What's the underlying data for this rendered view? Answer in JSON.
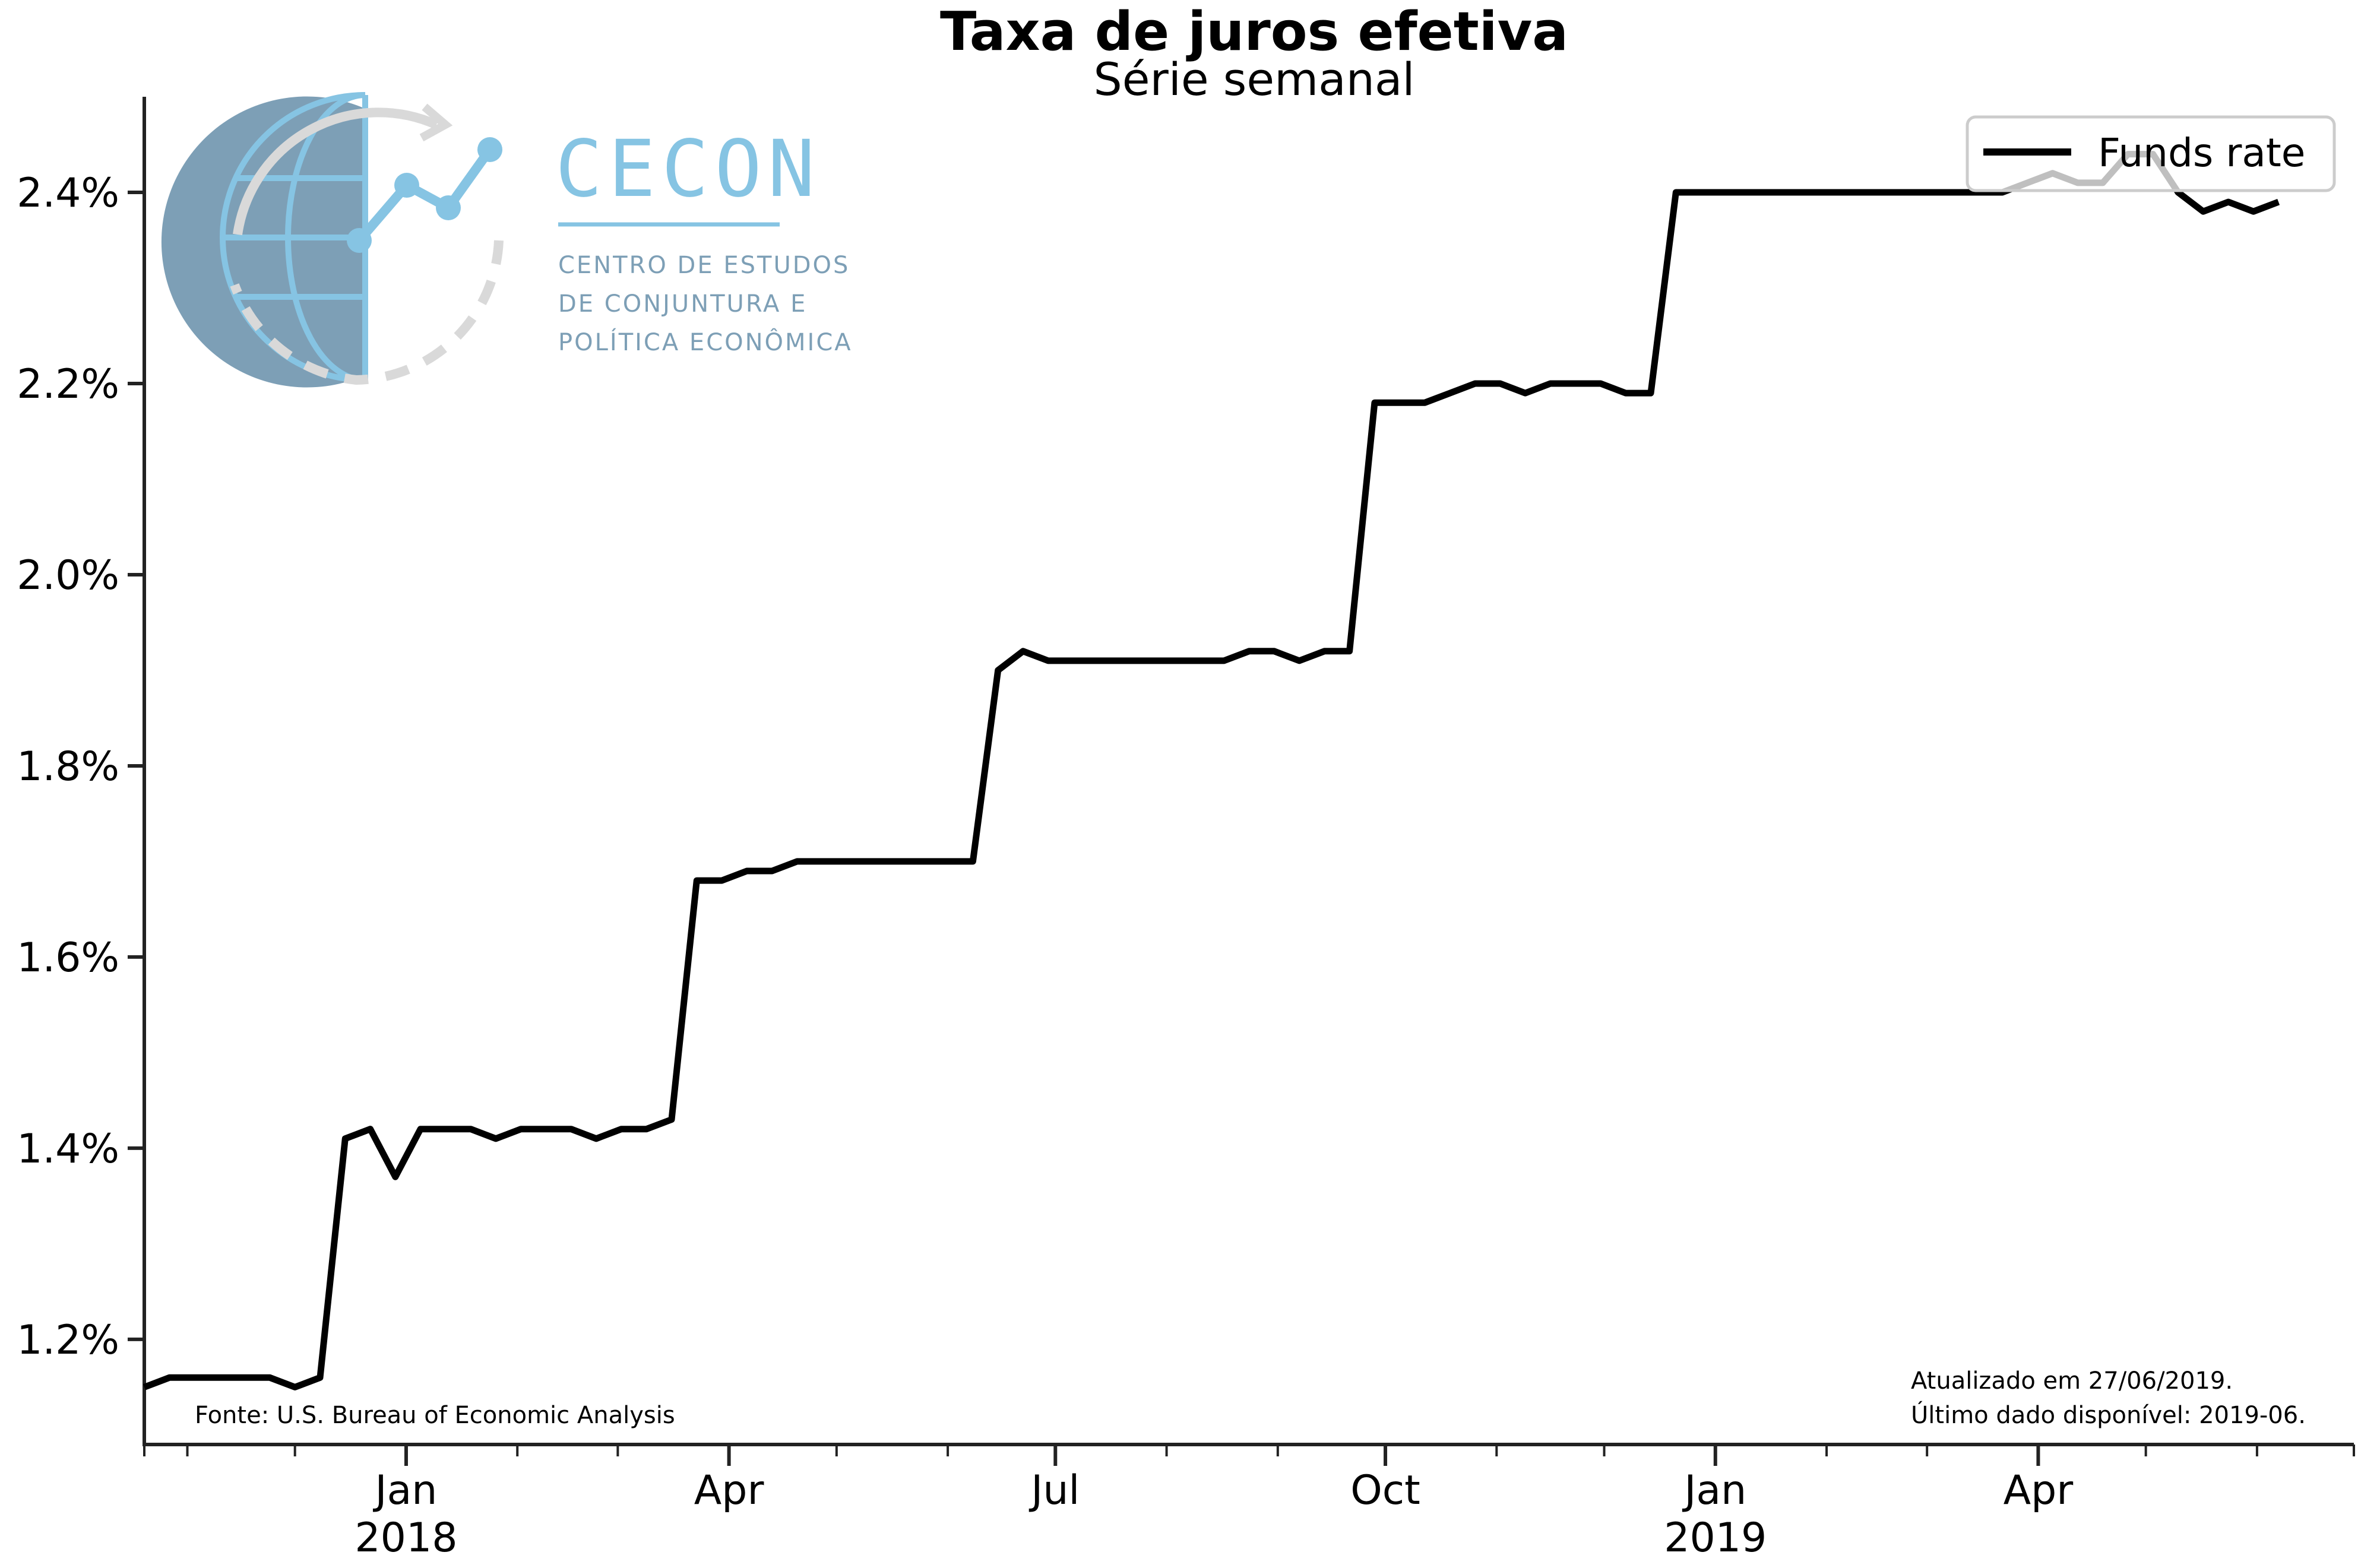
{
  "chart_data": {
    "type": "line",
    "title": "Taxa de juros efetiva",
    "subtitle": "Série semanal",
    "legend": {
      "placement": "top-right",
      "entries": [
        "Funds rate"
      ]
    },
    "ylim": [
      1.09,
      2.5
    ],
    "y_ticks": [
      1.2,
      1.4,
      1.6,
      1.8,
      2.0,
      2.2,
      2.4
    ],
    "y_tick_labels": [
      "1.2%",
      "1.4%",
      "1.6%",
      "1.8%",
      "2.0%",
      "2.2%",
      "2.4%"
    ],
    "xlim": [
      "2017-10-20",
      "2019-06-28"
    ],
    "x_tick_labels": [
      {
        "date": "2018-01-01",
        "line1": "Jan",
        "line2": "2018"
      },
      {
        "date": "2018-04-01",
        "line1": "Apr",
        "line2": ""
      },
      {
        "date": "2018-07-01",
        "line1": "Jul",
        "line2": ""
      },
      {
        "date": "2018-10-01",
        "line1": "Oct",
        "line2": ""
      },
      {
        "date": "2019-01-01",
        "line1": "Jan",
        "line2": "2019"
      },
      {
        "date": "2019-04-01",
        "line1": "Apr",
        "line2": ""
      }
    ],
    "x_minor_ticks": [
      "2017-10-20",
      "2017-11-01",
      "2017-12-01",
      "2018-02-01",
      "2018-03-01",
      "2018-05-01",
      "2018-06-01",
      "2018-08-01",
      "2018-09-01",
      "2018-11-01",
      "2018-12-01",
      "2019-02-01",
      "2019-03-01",
      "2019-05-01",
      "2019-06-01",
      "2019-06-28"
    ],
    "grid": false,
    "series": [
      {
        "name": "Funds rate",
        "color": "#000000",
        "points": [
          [
            "2017-10-20",
            1.15
          ],
          [
            "2017-10-27",
            1.16
          ],
          [
            "2017-11-03",
            1.16
          ],
          [
            "2017-11-10",
            1.16
          ],
          [
            "2017-11-17",
            1.16
          ],
          [
            "2017-11-24",
            1.16
          ],
          [
            "2017-12-01",
            1.15
          ],
          [
            "2017-12-08",
            1.16
          ],
          [
            "2017-12-15",
            1.41
          ],
          [
            "2017-12-22",
            1.42
          ],
          [
            "2017-12-29",
            1.37
          ],
          [
            "2018-01-05",
            1.42
          ],
          [
            "2018-01-12",
            1.42
          ],
          [
            "2018-01-19",
            1.42
          ],
          [
            "2018-01-26",
            1.41
          ],
          [
            "2018-02-02",
            1.42
          ],
          [
            "2018-02-09",
            1.42
          ],
          [
            "2018-02-16",
            1.42
          ],
          [
            "2018-02-23",
            1.41
          ],
          [
            "2018-03-02",
            1.42
          ],
          [
            "2018-03-09",
            1.42
          ],
          [
            "2018-03-16",
            1.43
          ],
          [
            "2018-03-23",
            1.68
          ],
          [
            "2018-03-30",
            1.68
          ],
          [
            "2018-04-06",
            1.69
          ],
          [
            "2018-04-13",
            1.69
          ],
          [
            "2018-04-20",
            1.7
          ],
          [
            "2018-04-27",
            1.7
          ],
          [
            "2018-05-04",
            1.7
          ],
          [
            "2018-05-11",
            1.7
          ],
          [
            "2018-05-18",
            1.7
          ],
          [
            "2018-05-25",
            1.7
          ],
          [
            "2018-06-01",
            1.7
          ],
          [
            "2018-06-08",
            1.7
          ],
          [
            "2018-06-15",
            1.9
          ],
          [
            "2018-06-22",
            1.92
          ],
          [
            "2018-06-29",
            1.91
          ],
          [
            "2018-07-06",
            1.91
          ],
          [
            "2018-07-13",
            1.91
          ],
          [
            "2018-07-20",
            1.91
          ],
          [
            "2018-07-27",
            1.91
          ],
          [
            "2018-08-03",
            1.91
          ],
          [
            "2018-08-10",
            1.91
          ],
          [
            "2018-08-17",
            1.91
          ],
          [
            "2018-08-24",
            1.92
          ],
          [
            "2018-08-31",
            1.92
          ],
          [
            "2018-09-07",
            1.91
          ],
          [
            "2018-09-14",
            1.92
          ],
          [
            "2018-09-21",
            1.92
          ],
          [
            "2018-09-28",
            2.18
          ],
          [
            "2018-10-05",
            2.18
          ],
          [
            "2018-10-12",
            2.18
          ],
          [
            "2018-10-19",
            2.19
          ],
          [
            "2018-10-26",
            2.2
          ],
          [
            "2018-11-02",
            2.2
          ],
          [
            "2018-11-09",
            2.19
          ],
          [
            "2018-11-16",
            2.2
          ],
          [
            "2018-11-23",
            2.2
          ],
          [
            "2018-11-30",
            2.2
          ],
          [
            "2018-12-07",
            2.19
          ],
          [
            "2018-12-14",
            2.19
          ],
          [
            "2018-12-21",
            2.4
          ],
          [
            "2018-12-28",
            2.4
          ],
          [
            "2019-01-04",
            2.4
          ],
          [
            "2019-01-11",
            2.4
          ],
          [
            "2019-01-18",
            2.4
          ],
          [
            "2019-01-25",
            2.4
          ],
          [
            "2019-02-01",
            2.4
          ],
          [
            "2019-02-08",
            2.4
          ],
          [
            "2019-02-15",
            2.4
          ],
          [
            "2019-02-22",
            2.4
          ],
          [
            "2019-03-01",
            2.4
          ],
          [
            "2019-03-08",
            2.4
          ],
          [
            "2019-03-15",
            2.4
          ],
          [
            "2019-03-22",
            2.4
          ],
          [
            "2019-03-29",
            2.41
          ],
          [
            "2019-04-05",
            2.42
          ],
          [
            "2019-04-12",
            2.41
          ],
          [
            "2019-04-19",
            2.41
          ],
          [
            "2019-04-26",
            2.44
          ],
          [
            "2019-05-03",
            2.44
          ],
          [
            "2019-05-10",
            2.4
          ],
          [
            "2019-05-17",
            2.38
          ],
          [
            "2019-05-24",
            2.39
          ],
          [
            "2019-05-31",
            2.38
          ],
          [
            "2019-06-07",
            2.39
          ]
        ]
      }
    ],
    "annotations": {
      "source": "Fonte: U.S. Bureau of Economic Analysis",
      "updated": "Atualizado em 27/06/2019.",
      "last_data": "Último dado disponível: 2019-06."
    }
  },
  "logo": {
    "name": "CECON",
    "line1": "CENTRO DE ESTUDOS",
    "line2": "DE CONJUNTURA E",
    "line3": "POLÍTICA ECONÔMICA",
    "colors": {
      "blue": "#86c4e3",
      "dark": "#7d9fb6",
      "grey": "#d9d9d9"
    }
  }
}
